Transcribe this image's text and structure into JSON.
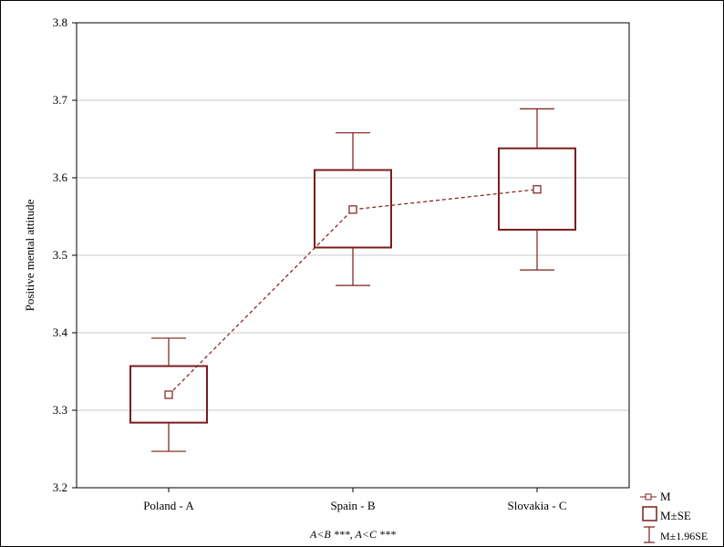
{
  "chart_data": {
    "type": "box",
    "title": "",
    "xlabel": "",
    "ylabel": "Positive mental attitude",
    "ylim": [
      3.2,
      3.8
    ],
    "yticks": [
      "3.2",
      "3.3",
      "3.4",
      "3.5",
      "3.6",
      "3.7",
      "3.8"
    ],
    "categories": [
      "Poland - A",
      "Spain - B",
      "Slovakia - C"
    ],
    "series": [
      {
        "mean": [
          3.32,
          3.559,
          3.585
        ],
        "se_low": [
          3.284,
          3.51,
          3.533
        ],
        "se_high": [
          3.357,
          3.61,
          3.638
        ],
        "ci_low": [
          3.247,
          3.461,
          3.481
        ],
        "ci_high": [
          3.393,
          3.658,
          3.689
        ]
      }
    ],
    "legend": {
      "position": "bottom-right",
      "entries": [
        "M",
        "M±SE",
        "M±1.96SE"
      ]
    },
    "annotation": "A<B ***, A<C ***",
    "grid": true,
    "colors": {
      "series": "#7b1c1c",
      "grid": "#c8c8c8",
      "frame": "#000000"
    }
  }
}
